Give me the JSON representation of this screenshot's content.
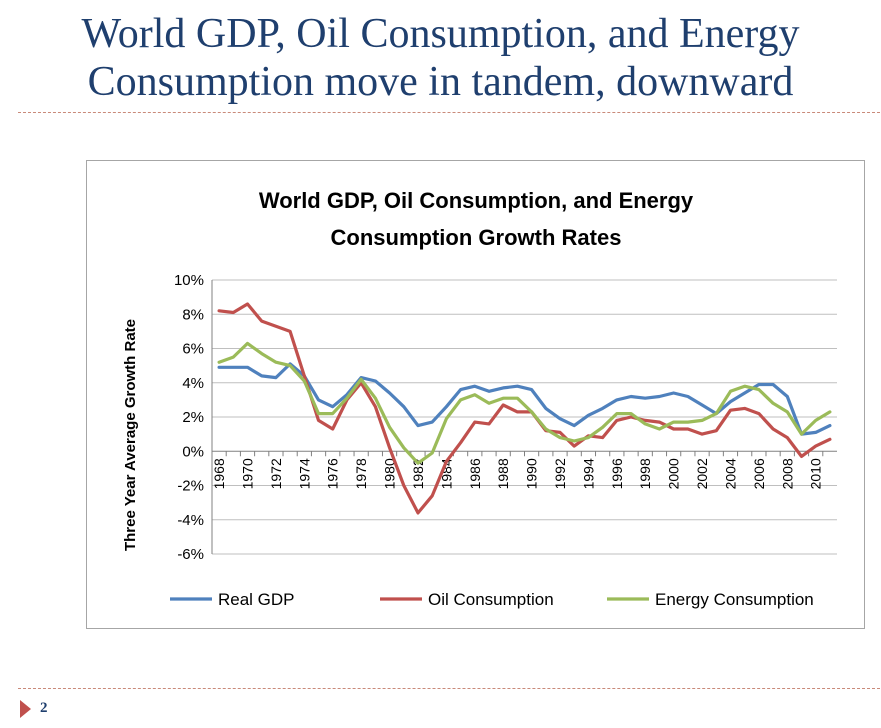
{
  "slide": {
    "title_line1": "World GDP, Oil Consumption, and Energy",
    "title_line2": "Consumption move in tandem, downward",
    "page_number": "2"
  },
  "chart_data": {
    "type": "line",
    "title_line1": "World GDP,  Oil Consumption, and Energy",
    "title_line2": "Consumption Growth Rates",
    "xlabel": "",
    "ylabel": "Three Year Average Growth Rate",
    "ylim": [
      -6,
      10
    ],
    "yticks": [
      10,
      8,
      6,
      4,
      2,
      0,
      -2,
      -4,
      -6
    ],
    "ytick_labels": [
      "10%",
      "8%",
      "6%",
      "4%",
      "2%",
      "0%",
      "-2%",
      "-4%",
      "-6%"
    ],
    "x": [
      1968,
      1969,
      1970,
      1971,
      1972,
      1973,
      1974,
      1975,
      1976,
      1977,
      1978,
      1979,
      1980,
      1981,
      1982,
      1983,
      1984,
      1985,
      1986,
      1987,
      1988,
      1989,
      1990,
      1991,
      1992,
      1993,
      1994,
      1995,
      1996,
      1997,
      1998,
      1999,
      2000,
      2001,
      2002,
      2003,
      2004,
      2005,
      2006,
      2007,
      2008,
      2009,
      2010,
      2011
    ],
    "xtick_labels": [
      "1968",
      "1970",
      "1972",
      "1974",
      "1976",
      "1978",
      "1980",
      "1982",
      "1984",
      "1986",
      "1988",
      "1990",
      "1992",
      "1994",
      "1996",
      "1998",
      "2000",
      "2002",
      "2004",
      "2006",
      "2008",
      "2010"
    ],
    "grid": true,
    "legend": "bottom",
    "series": [
      {
        "name": "Real GDP",
        "color": "#4f81bd",
        "values": [
          4.9,
          4.9,
          4.9,
          4.4,
          4.3,
          5.1,
          4.4,
          3.0,
          2.6,
          3.3,
          4.3,
          4.1,
          3.4,
          2.6,
          1.5,
          1.7,
          2.6,
          3.6,
          3.8,
          3.5,
          3.7,
          3.8,
          3.6,
          2.5,
          1.9,
          1.5,
          2.1,
          2.5,
          3.0,
          3.2,
          3.1,
          3.2,
          3.4,
          3.2,
          2.7,
          2.2,
          2.9,
          3.4,
          3.9,
          3.9,
          3.2,
          1.0,
          1.1,
          1.5
        ]
      },
      {
        "name": "Oil Consumption",
        "color": "#c0504d",
        "values": [
          8.2,
          8.1,
          8.6,
          7.6,
          7.3,
          7.0,
          4.4,
          1.8,
          1.3,
          3.0,
          4.0,
          2.6,
          0.2,
          -2.0,
          -3.6,
          -2.6,
          -0.6,
          0.5,
          1.7,
          1.6,
          2.7,
          2.3,
          2.3,
          1.2,
          1.1,
          0.3,
          0.9,
          0.8,
          1.8,
          2.0,
          1.8,
          1.7,
          1.3,
          1.3,
          1.0,
          1.2,
          2.4,
          2.5,
          2.2,
          1.3,
          0.8,
          -0.3,
          0.3,
          0.7
        ]
      },
      {
        "name": "Energy Consumption",
        "color": "#9bbb59",
        "values": [
          5.2,
          5.5,
          6.3,
          5.7,
          5.2,
          5.0,
          4.1,
          2.2,
          2.2,
          3.1,
          4.2,
          3.1,
          1.4,
          0.2,
          -0.7,
          -0.1,
          1.9,
          3.0,
          3.3,
          2.8,
          3.1,
          3.1,
          2.3,
          1.3,
          0.8,
          0.6,
          0.8,
          1.4,
          2.2,
          2.2,
          1.6,
          1.3,
          1.7,
          1.7,
          1.8,
          2.2,
          3.5,
          3.8,
          3.6,
          2.8,
          2.3,
          1.0,
          1.8,
          2.3
        ]
      }
    ]
  }
}
